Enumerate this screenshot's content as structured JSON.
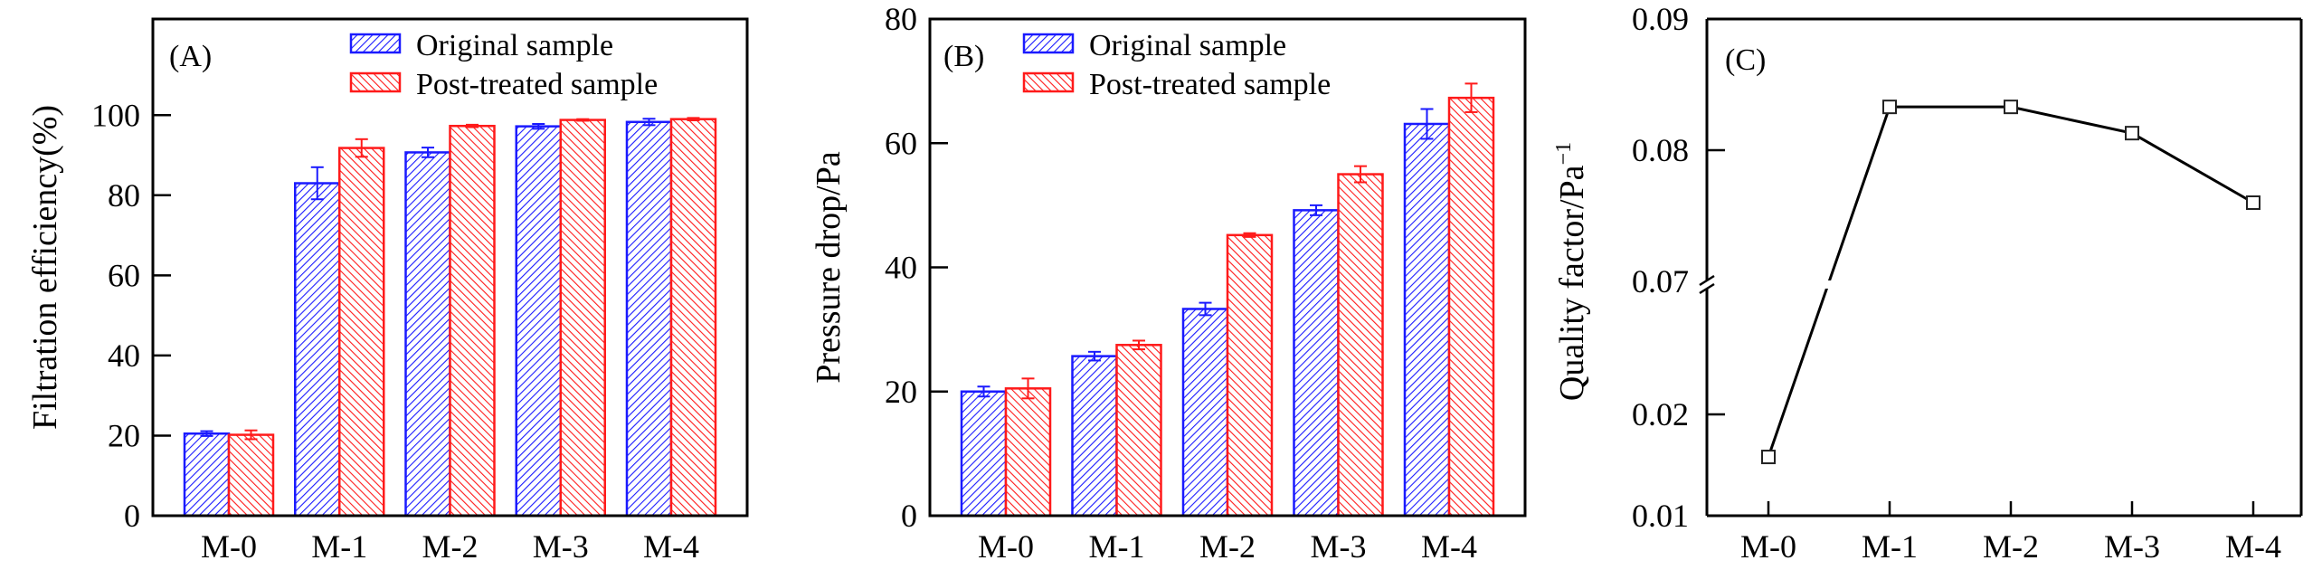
{
  "chart_data": [
    {
      "type": "bar",
      "panel_label": "(A)",
      "categories": [
        "M-0",
        "M-1",
        "M-2",
        "M-3",
        "M-4"
      ],
      "ylabel": "Filtration efficiency(%)",
      "xlabel": "",
      "ylim": [
        0,
        124
      ],
      "yticks": [
        0,
        20,
        40,
        60,
        80,
        100
      ],
      "legend_position": "top-right",
      "series": [
        {
          "name": "Original sample",
          "color": "#1a1aff",
          "hatch": "forward",
          "values": [
            20.5,
            83.0,
            90.7,
            97.2,
            98.3
          ],
          "errors": [
            0.6,
            4.0,
            1.2,
            0.6,
            0.8
          ]
        },
        {
          "name": "Post-treated sample",
          "color": "#ff1a1a",
          "hatch": "backward",
          "values": [
            20.2,
            91.8,
            97.3,
            98.8,
            99.0
          ],
          "errors": [
            1.1,
            2.2,
            0.3,
            0.2,
            0.3
          ]
        }
      ]
    },
    {
      "type": "bar",
      "panel_label": "(B)",
      "categories": [
        "M-0",
        "M-1",
        "M-2",
        "M-3",
        "M-4"
      ],
      "ylabel": "Pressure drop/Pa",
      "xlabel": "",
      "ylim": [
        0,
        80
      ],
      "yticks": [
        0,
        20,
        40,
        60,
        80
      ],
      "legend_position": "top-left",
      "series": [
        {
          "name": "Original sample",
          "color": "#1a1aff",
          "hatch": "forward",
          "values": [
            20.0,
            25.7,
            33.3,
            49.2,
            63.1
          ],
          "errors": [
            0.8,
            0.7,
            1.0,
            0.8,
            2.4
          ]
        },
        {
          "name": "Post-treated sample",
          "color": "#ff1a1a",
          "hatch": "backward",
          "values": [
            20.5,
            27.5,
            45.2,
            55.0,
            67.3
          ],
          "errors": [
            1.6,
            0.7,
            0.3,
            1.3,
            2.3
          ]
        }
      ]
    },
    {
      "type": "line",
      "panel_label": "(C)",
      "categories": [
        "M-0",
        "M-1",
        "M-2",
        "M-3",
        "M-4"
      ],
      "ylabel": "Quality factor/Pa",
      "ylabel_superscript": "−1",
      "xlabel": "",
      "ylim": [
        0.01,
        0.09
      ],
      "axis_break": [
        0.02,
        0.07
      ],
      "yticks": [
        "0.01",
        "0.02",
        "0.07",
        "0.08",
        "0.09"
      ],
      "marker": "open-square",
      "series": [
        {
          "name": "Quality factor",
          "color": "#000000",
          "values": [
            0.0158,
            0.0833,
            0.0833,
            0.0813,
            0.076
          ]
        }
      ]
    }
  ]
}
